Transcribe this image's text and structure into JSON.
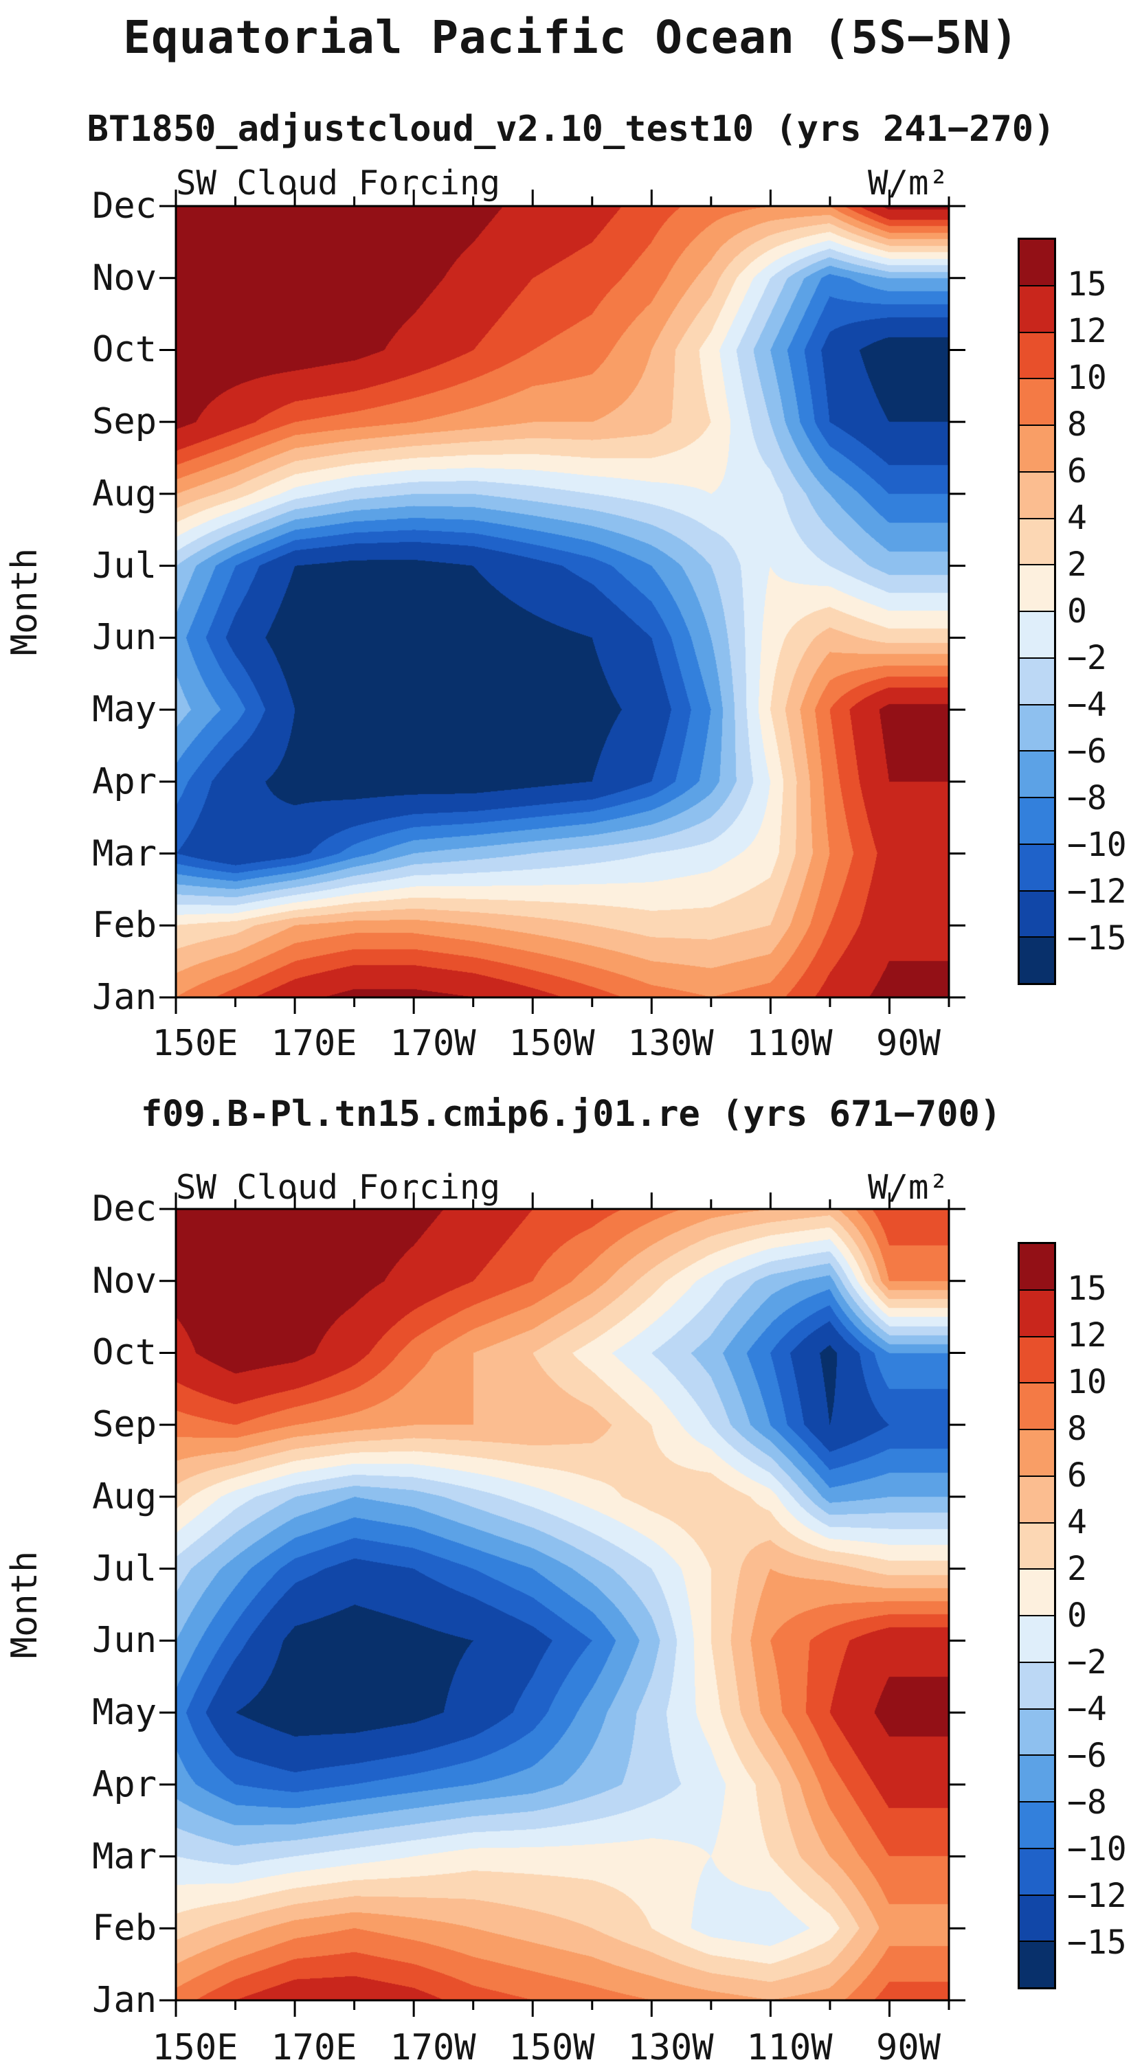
{
  "page_title": "Equatorial Pacific Ocean (5S−5N)",
  "colors": {
    "palette": [
      "#08306b",
      "#1147a8",
      "#1f62c9",
      "#3380dc",
      "#5ca2e6",
      "#8ec0ef",
      "#bcd8f5",
      "#dfeefa",
      "#fdf0de",
      "#fcd7b4",
      "#fbbd90",
      "#f99e66",
      "#f47a45",
      "#e8502b",
      "#c9261c",
      "#931016"
    ],
    "frame": "#000000",
    "background": "#ffffff"
  },
  "chart_data": [
    {
      "type": "heatmap",
      "title": "BT1850_adjustcloud_v2.10_test10 (yrs 241−270)",
      "subtitle_left": "SW Cloud Forcing",
      "units": "W/m²",
      "ylabel": "Month",
      "months": [
        "Jan",
        "Feb",
        "Mar",
        "Apr",
        "May",
        "Jun",
        "Jul",
        "Aug",
        "Sep",
        "Oct",
        "Nov",
        "Dec"
      ],
      "x_tick_labels": [
        "150E",
        "170E",
        "170W",
        "150W",
        "130W",
        "110W",
        "90W"
      ],
      "longitudes_deg": [
        150,
        160,
        170,
        180,
        190,
        200,
        210,
        220,
        230,
        240,
        250,
        260,
        270
      ],
      "x_range_deg": [
        150,
        280
      ],
      "levels": [
        -15,
        -12,
        -10,
        -8,
        -6,
        -4,
        -2,
        0,
        2,
        4,
        6,
        8,
        10,
        12,
        15
      ],
      "colorbar_labels": [
        "15",
        "12",
        "10",
        "8",
        "6",
        "4",
        "2",
        "0",
        "−2",
        "−4",
        "−6",
        "−8",
        "−10",
        "−12",
        "−15"
      ],
      "values": [
        [
          8,
          11,
          14,
          16,
          16,
          15,
          13,
          11,
          9,
          8,
          9,
          13,
          16
        ],
        [
          2,
          3,
          6,
          7,
          7,
          6,
          5,
          4,
          3,
          3,
          4,
          10,
          14
        ],
        [
          -12,
          -15,
          -13,
          -9,
          -6,
          -5,
          -4,
          -3,
          -2,
          -1,
          1,
          8,
          13
        ],
        [
          -9,
          -14,
          -16,
          -17,
          -17,
          -17,
          -16,
          -15,
          -12,
          -7,
          0,
          9,
          15
        ],
        [
          -5,
          -9,
          -15,
          -17,
          -17,
          -17,
          -17,
          -16,
          -14,
          -8,
          2,
          10,
          16
        ],
        [
          -7,
          -13,
          -17,
          -17,
          -17,
          -17,
          -16,
          -15,
          -12,
          -6,
          1,
          5,
          3
        ],
        [
          -4,
          -10,
          -15,
          -16,
          -16,
          -15,
          -13,
          -11,
          -8,
          -4,
          0,
          -2,
          -5
        ],
        [
          6,
          3,
          -1,
          -3,
          -4,
          -4,
          -3,
          -2,
          -1,
          0,
          -1,
          -6,
          -10
        ],
        [
          16,
          13,
          10,
          9,
          8,
          7,
          6,
          6,
          5,
          2,
          -4,
          -12,
          -15
        ],
        [
          17,
          17,
          17,
          16,
          14,
          12,
          10,
          9,
          6,
          1,
          -6,
          -13,
          -17
        ],
        [
          17,
          17,
          17,
          17,
          16,
          14,
          12,
          11,
          9,
          5,
          -2,
          -9,
          -6
        ],
        [
          17,
          17,
          17,
          17,
          17,
          16,
          14,
          13,
          11,
          9,
          8,
          8,
          16
        ]
      ]
    },
    {
      "type": "heatmap",
      "title": "f09.B-Pl.tn15.cmip6.j01.re (yrs 671−700)",
      "subtitle_left": "SW Cloud Forcing",
      "units": "W/m²",
      "ylabel": "Month",
      "months": [
        "Jan",
        "Feb",
        "Mar",
        "Apr",
        "May",
        "Jun",
        "Jul",
        "Aug",
        "Sep",
        "Oct",
        "Nov",
        "Dec"
      ],
      "x_tick_labels": [
        "150E",
        "170E",
        "170W",
        "150W",
        "130W",
        "110W",
        "90W"
      ],
      "longitudes_deg": [
        150,
        160,
        170,
        180,
        190,
        200,
        210,
        220,
        230,
        240,
        250,
        260,
        270
      ],
      "x_range_deg": [
        150,
        280
      ],
      "levels": [
        -15,
        -12,
        -10,
        -8,
        -6,
        -4,
        -2,
        0,
        2,
        4,
        6,
        8,
        10,
        12,
        15
      ],
      "colorbar_labels": [
        "15",
        "12",
        "10",
        "8",
        "6",
        "4",
        "2",
        "0",
        "−2",
        "−4",
        "−6",
        "−8",
        "−10",
        "−12",
        "−15"
      ],
      "values": [
        [
          9,
          12,
          14,
          14,
          13,
          11,
          10,
          9,
          8,
          7,
          6,
          7,
          11
        ],
        [
          3,
          5,
          7,
          8,
          7,
          6,
          5,
          4,
          2,
          -1,
          -2,
          1,
          7
        ],
        [
          -2,
          -3,
          -2,
          -1,
          0,
          1,
          1,
          1,
          1,
          0,
          2,
          6,
          10
        ],
        [
          -7,
          -10,
          -11,
          -10,
          -9,
          -8,
          -7,
          -5,
          -3,
          -1,
          3,
          9,
          13
        ],
        [
          -9,
          -15,
          -17,
          -17,
          -16,
          -14,
          -11,
          -7,
          -3,
          1,
          7,
          12,
          16
        ],
        [
          -6,
          -11,
          -16,
          -17,
          -16,
          -15,
          -13,
          -10,
          -5,
          2,
          8,
          11,
          14
        ],
        [
          -3,
          -7,
          -11,
          -13,
          -12,
          -10,
          -8,
          -5,
          -2,
          2,
          6,
          5,
          3
        ],
        [
          3,
          -1,
          -4,
          -6,
          -5,
          -3,
          -1,
          1,
          3,
          4,
          1,
          -7,
          -6
        ],
        [
          9,
          10,
          8,
          7,
          6,
          6,
          6,
          5,
          2,
          -2,
          -8,
          -15,
          -12
        ],
        [
          14,
          17,
          16,
          13,
          9,
          6,
          4,
          1,
          -2,
          -5,
          -10,
          -16,
          -8
        ],
        [
          16,
          17,
          17,
          16,
          14,
          12,
          10,
          7,
          3,
          -1,
          -5,
          -7,
          8
        ],
        [
          15,
          17,
          17,
          17,
          16,
          14,
          12,
          11,
          9,
          7,
          6,
          5,
          12
        ]
      ]
    }
  ]
}
